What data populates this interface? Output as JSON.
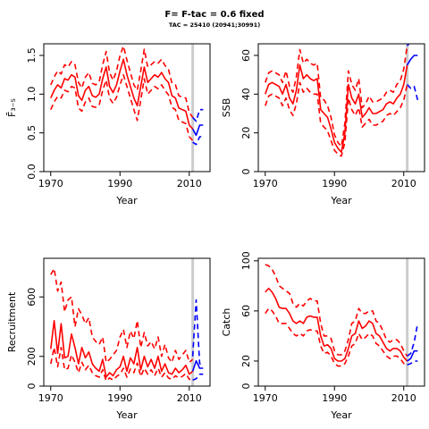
{
  "header": {
    "title": "F= F-tac = 0.6 fixed",
    "subtitle": "TAC = 25410 (20941;30991)"
  },
  "colors": {
    "history": "#ff0000",
    "projection": "#0000ff",
    "marker": "#cccccc"
  },
  "chart_data": [
    {
      "id": "fbar",
      "type": "line",
      "xlabel": "Year",
      "ylabel": "F̄₃₋₅",
      "xlim": [
        1968,
        2016
      ],
      "ylim": [
        0,
        1.65
      ],
      "xticks": [
        1970,
        1990,
        2010
      ],
      "yticks": [
        0,
        0.5,
        1.0,
        1.5
      ],
      "ytick_labels": [
        "0.0",
        "0.5",
        "1.0",
        "1.5"
      ],
      "marker_year": 2011,
      "history": {
        "x": [
          1970,
          1971,
          1972,
          1973,
          1974,
          1975,
          1976,
          1977,
          1978,
          1979,
          1980,
          1981,
          1982,
          1983,
          1984,
          1985,
          1986,
          1987,
          1988,
          1989,
          1990,
          1991,
          1992,
          1993,
          1994,
          1995,
          1996,
          1997,
          1998,
          1999,
          2000,
          2001,
          2002,
          2003,
          2004,
          2005,
          2006,
          2007,
          2008,
          2009,
          2010,
          2011
        ],
        "mid": [
          0.95,
          1.05,
          1.12,
          1.08,
          1.2,
          1.18,
          1.25,
          1.22,
          0.98,
          0.92,
          1.05,
          1.1,
          0.98,
          0.96,
          1.0,
          1.2,
          1.35,
          1.1,
          1.02,
          1.12,
          1.3,
          1.45,
          1.25,
          1.1,
          0.95,
          0.85,
          1.1,
          1.35,
          1.15,
          1.2,
          1.25,
          1.22,
          1.28,
          1.2,
          1.15,
          0.98,
          0.95,
          0.82,
          0.8,
          0.78,
          0.6,
          0.55
        ],
        "lo": [
          0.8,
          0.9,
          0.97,
          0.95,
          1.05,
          1.03,
          1.1,
          1.08,
          0.82,
          0.78,
          0.9,
          0.95,
          0.84,
          0.83,
          0.86,
          1.05,
          1.18,
          0.95,
          0.88,
          0.96,
          1.12,
          1.25,
          1.1,
          0.95,
          0.8,
          0.66,
          0.92,
          1.2,
          1.0,
          1.05,
          1.1,
          1.07,
          1.12,
          1.05,
          0.99,
          0.83,
          0.8,
          0.66,
          0.64,
          0.62,
          0.45,
          0.4
        ],
        "hi": [
          1.12,
          1.22,
          1.3,
          1.26,
          1.38,
          1.35,
          1.42,
          1.38,
          1.15,
          1.08,
          1.22,
          1.28,
          1.14,
          1.12,
          1.16,
          1.38,
          1.55,
          1.28,
          1.18,
          1.3,
          1.5,
          1.62,
          1.44,
          1.28,
          1.12,
          1.05,
          1.3,
          1.58,
          1.35,
          1.38,
          1.42,
          1.4,
          1.45,
          1.37,
          1.32,
          1.14,
          1.12,
          0.98,
          0.96,
          0.95,
          0.76,
          0.7
        ]
      },
      "projection": {
        "x": [
          2011,
          2012,
          2013,
          2014
        ],
        "mid": [
          0.55,
          0.47,
          0.6,
          0.6
        ],
        "lo": [
          0.38,
          0.35,
          0.45,
          0.45
        ],
        "hi": [
          0.7,
          0.65,
          0.8,
          0.8
        ]
      }
    },
    {
      "id": "ssb",
      "type": "line",
      "xlabel": "Year",
      "ylabel": "SSB",
      "xlim": [
        1968,
        2016
      ],
      "ylim": [
        0,
        66
      ],
      "xticks": [
        1970,
        1990,
        2010
      ],
      "yticks": [
        0,
        20,
        40,
        60
      ],
      "ytick_labels": [
        "0",
        "20",
        "40",
        "60"
      ],
      "marker_year": 2011,
      "history": {
        "x": [
          1970,
          1971,
          1972,
          1973,
          1974,
          1975,
          1976,
          1977,
          1978,
          1979,
          1980,
          1981,
          1982,
          1983,
          1984,
          1985,
          1986,
          1987,
          1988,
          1989,
          1990,
          1991,
          1992,
          1993,
          1994,
          1995,
          1996,
          1997,
          1998,
          1999,
          2000,
          2001,
          2002,
          2003,
          2004,
          2005,
          2006,
          2007,
          2008,
          2009,
          2010,
          2011
        ],
        "mid": [
          40,
          45,
          46,
          45,
          44,
          40,
          45,
          38,
          35,
          42,
          55,
          48,
          50,
          48,
          47,
          48,
          32,
          30,
          28,
          22,
          15,
          12,
          10,
          20,
          45,
          38,
          35,
          40,
          28,
          30,
          33,
          30,
          30,
          31,
          32,
          35,
          36,
          35,
          38,
          40,
          45,
          55
        ],
        "lo": [
          34,
          39,
          40,
          39,
          38,
          34,
          38,
          32,
          29,
          35,
          46,
          41,
          43,
          41,
          40,
          40,
          25,
          23,
          21,
          16,
          11,
          9,
          8,
          15,
          38,
          32,
          29,
          33,
          23,
          25,
          27,
          24,
          24,
          25,
          26,
          29,
          30,
          29,
          31,
          33,
          37,
          45
        ],
        "hi": [
          46,
          51,
          52,
          51,
          50,
          46,
          52,
          44,
          41,
          49,
          63,
          56,
          58,
          56,
          55,
          56,
          38,
          37,
          34,
          28,
          19,
          15,
          13,
          25,
          52,
          45,
          42,
          48,
          33,
          35,
          39,
          36,
          36,
          37,
          38,
          41,
          42,
          41,
          45,
          47,
          53,
          65
        ]
      },
      "projection": {
        "x": [
          2011,
          2012,
          2013,
          2014
        ],
        "mid": [
          55,
          58,
          60,
          60
        ],
        "lo": [
          45,
          43,
          44,
          37
        ],
        "hi": [
          65,
          67,
          67,
          67
        ]
      }
    },
    {
      "id": "recruitment",
      "type": "line",
      "xlabel": "Year",
      "ylabel": "Recruitment",
      "xlim": [
        1968,
        2016
      ],
      "ylim": [
        0,
        860
      ],
      "xticks": [
        1970,
        1990,
        2010
      ],
      "yticks": [
        0,
        200,
        600
      ],
      "ytick_labels": [
        "0",
        "200",
        "600"
      ],
      "marker_year": 2011,
      "history": {
        "x": [
          1970,
          1971,
          1972,
          1973,
          1974,
          1975,
          1976,
          1977,
          1978,
          1979,
          1980,
          1981,
          1982,
          1983,
          1984,
          1985,
          1986,
          1987,
          1988,
          1989,
          1990,
          1991,
          1992,
          1993,
          1994,
          1995,
          1996,
          1997,
          1998,
          1999,
          2000,
          2001,
          2002,
          2003,
          2004,
          2005,
          2006,
          2007,
          2008,
          2009,
          2010,
          2011
        ],
        "mid": [
          250,
          440,
          220,
          420,
          190,
          200,
          350,
          260,
          150,
          260,
          190,
          230,
          150,
          120,
          100,
          180,
          60,
          90,
          70,
          110,
          130,
          200,
          100,
          190,
          150,
          260,
          110,
          200,
          130,
          180,
          120,
          200,
          100,
          150,
          90,
          80,
          120,
          90,
          110,
          140,
          80,
          100
        ],
        "lo": [
          150,
          260,
          130,
          260,
          110,
          120,
          210,
          160,
          90,
          160,
          110,
          140,
          90,
          70,
          60,
          110,
          35,
          55,
          40,
          65,
          80,
          120,
          60,
          115,
          90,
          155,
          65,
          120,
          80,
          110,
          70,
          120,
          60,
          90,
          55,
          45,
          70,
          55,
          65,
          85,
          45,
          60
        ],
        "hi": [
          750,
          790,
          640,
          700,
          500,
          580,
          600,
          400,
          520,
          480,
          420,
          460,
          330,
          300,
          280,
          330,
          160,
          180,
          210,
          240,
          330,
          380,
          260,
          370,
          320,
          440,
          260,
          360,
          270,
          300,
          250,
          330,
          200,
          280,
          190,
          160,
          240,
          180,
          210,
          240,
          160,
          180
        ]
      },
      "projection": {
        "x": [
          2011,
          2012,
          2013,
          2014
        ],
        "mid": [
          100,
          170,
          120,
          120
        ],
        "lo": [
          40,
          50,
          80,
          80
        ],
        "hi": [
          200,
          580,
          150,
          150
        ]
      }
    },
    {
      "id": "catch",
      "type": "line",
      "xlabel": "Year",
      "ylabel": "Catch",
      "xlim": [
        1968,
        2016
      ],
      "ylim": [
        0,
        102
      ],
      "xticks": [
        1970,
        1990,
        2010
      ],
      "yticks": [
        0,
        20,
        60,
        100
      ],
      "ytick_labels": [
        "0",
        "20",
        "60",
        "100"
      ],
      "marker_year": 2011,
      "history": {
        "x": [
          1970,
          1971,
          1972,
          1973,
          1974,
          1975,
          1976,
          1977,
          1978,
          1979,
          1980,
          1981,
          1982,
          1983,
          1984,
          1985,
          1986,
          1987,
          1988,
          1989,
          1990,
          1991,
          1992,
          1993,
          1994,
          1995,
          1996,
          1997,
          1998,
          1999,
          2000,
          2001,
          2002,
          2003,
          2004,
          2005,
          2006,
          2007,
          2008,
          2009,
          2010,
          2011
        ],
        "mid": [
          75,
          78,
          75,
          70,
          63,
          62,
          62,
          58,
          52,
          50,
          52,
          50,
          55,
          56,
          55,
          55,
          40,
          32,
          33,
          30,
          22,
          20,
          20,
          22,
          30,
          40,
          42,
          52,
          46,
          48,
          52,
          50,
          42,
          40,
          35,
          30,
          28,
          30,
          30,
          28,
          23,
          20
        ],
        "lo": [
          58,
          62,
          60,
          56,
          50,
          50,
          50,
          46,
          42,
          40,
          42,
          40,
          44,
          45,
          44,
          44,
          32,
          26,
          27,
          24,
          18,
          16,
          16,
          18,
          24,
          32,
          34,
          42,
          37,
          39,
          42,
          40,
          34,
          32,
          28,
          24,
          22,
          24,
          24,
          22,
          18,
          17
        ],
        "hi": [
          97,
          96,
          93,
          88,
          80,
          78,
          76,
          74,
          66,
          63,
          66,
          64,
          68,
          70,
          68,
          68,
          50,
          40,
          40,
          38,
          28,
          25,
          25,
          28,
          37,
          50,
          52,
          62,
          58,
          58,
          60,
          60,
          52,
          50,
          44,
          37,
          35,
          37,
          37,
          34,
          28,
          24
        ]
      },
      "projection": {
        "x": [
          2011,
          2012,
          2013,
          2014
        ],
        "mid": [
          20,
          22,
          28,
          28
        ],
        "lo": [
          17,
          18,
          20,
          20
        ],
        "hi": [
          24,
          26,
          35,
          50
        ]
      }
    }
  ]
}
